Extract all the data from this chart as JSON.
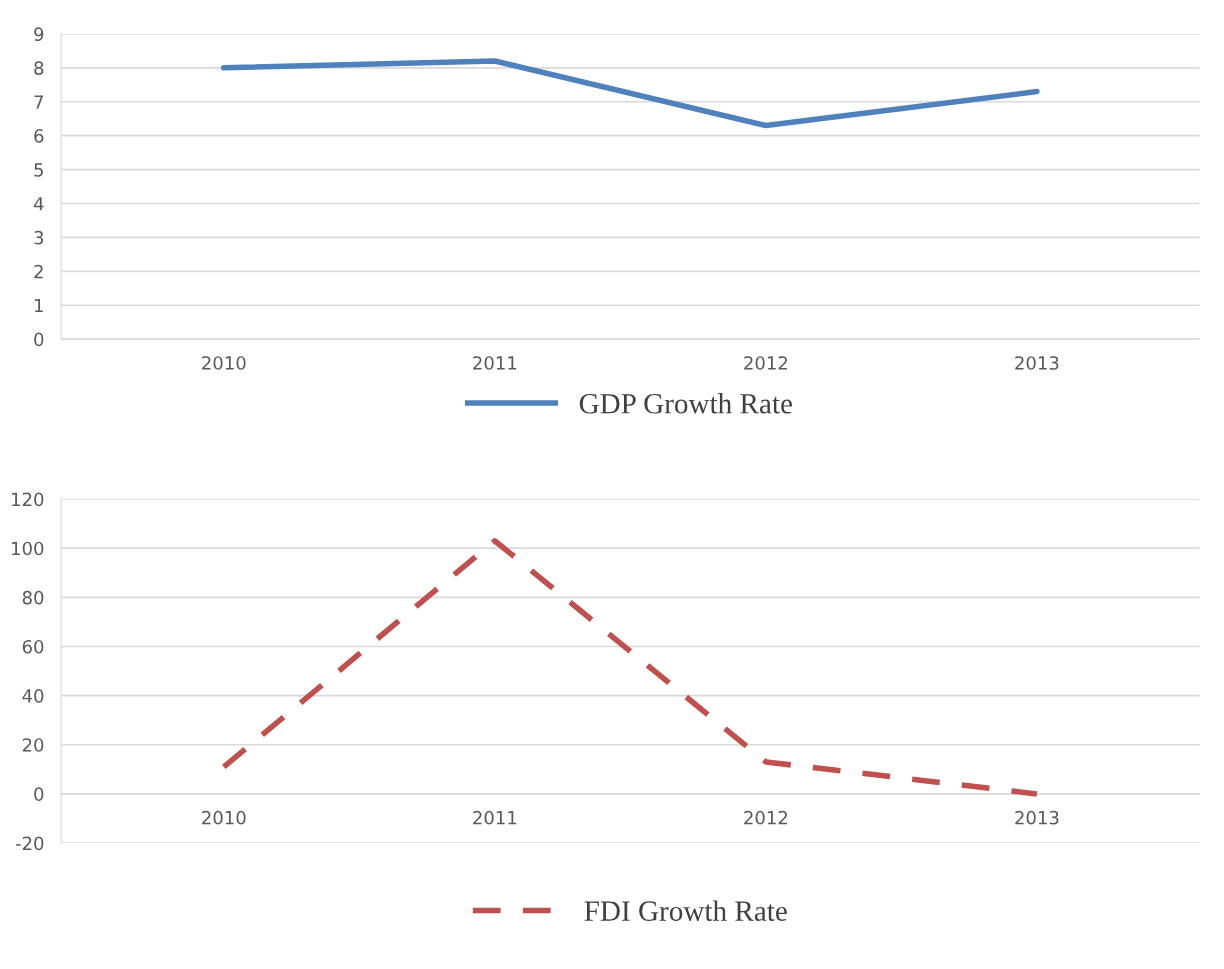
{
  "chart_data": [
    {
      "type": "line",
      "categories": [
        "2010",
        "2011",
        "2012",
        "2013"
      ],
      "series": [
        {
          "name": "GDP Growth Rate",
          "color": "#4f81bd",
          "values": [
            8.0,
            8.2,
            6.3,
            7.3
          ],
          "line_style": "solid"
        }
      ],
      "ylim": [
        0,
        9
      ],
      "yticks": [
        0,
        1,
        2,
        3,
        4,
        5,
        6,
        7,
        8,
        9
      ],
      "grid": "y",
      "legend": "bottom",
      "marker": "none"
    },
    {
      "type": "line",
      "categories": [
        "2010",
        "2011",
        "2012",
        "2013"
      ],
      "series": [
        {
          "name": "FDI Growth Rate",
          "color": "#c0504d",
          "values": [
            11,
            103,
            13,
            0
          ],
          "line_style": "dashed"
        }
      ],
      "ylim": [
        -20,
        120
      ],
      "yticks": [
        -20,
        0,
        20,
        40,
        60,
        80,
        100,
        120
      ],
      "grid": "y",
      "legend": "bottom",
      "marker": "none"
    }
  ]
}
